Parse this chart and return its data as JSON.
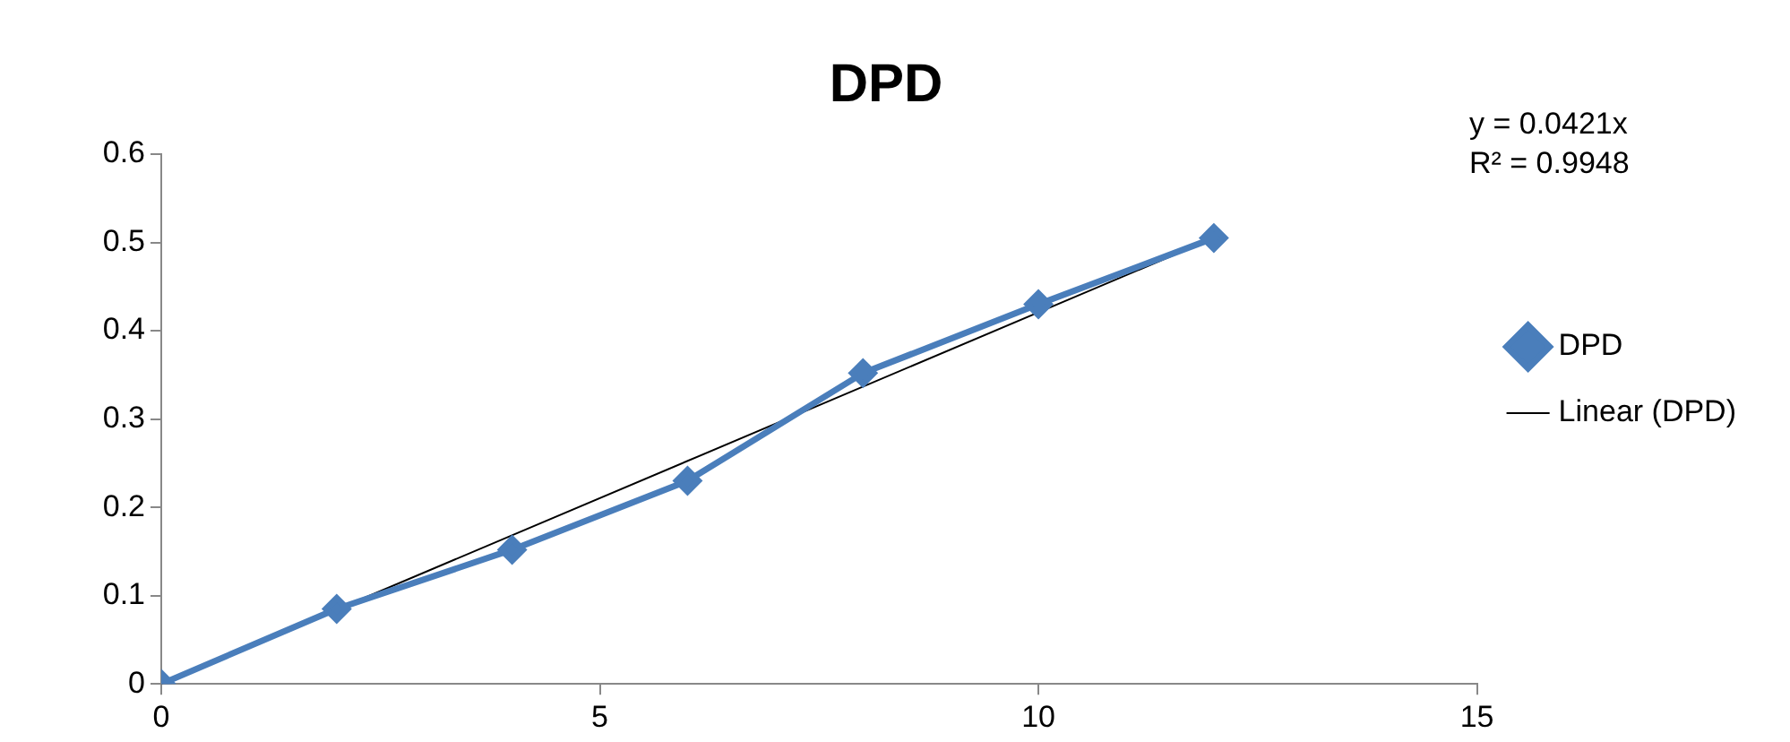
{
  "chart_data": {
    "type": "line",
    "title": "DPD",
    "series": [
      {
        "name": "DPD",
        "color": "#4a7ebb",
        "x": [
          0,
          2,
          4,
          6,
          8,
          10,
          12
        ],
        "values": [
          0,
          0.085,
          0.152,
          0.23,
          0.352,
          0.43,
          0.505
        ],
        "marker": "diamond"
      },
      {
        "name": "Linear (DPD)",
        "color": "#000000",
        "x": [
          0,
          12
        ],
        "values": [
          0,
          0.505
        ],
        "marker": "none"
      }
    ],
    "xlim": [
      0,
      15
    ],
    "xticks": [
      0,
      5,
      10,
      15
    ],
    "ylim": [
      0,
      0.6
    ],
    "yticks": [
      0,
      0.1,
      0.2,
      0.3,
      0.4,
      0.5,
      0.6
    ],
    "grid": false,
    "legend": "right",
    "line_style": "solid",
    "annotations": [
      "y = 0.0421x",
      "R² = 0.9948"
    ]
  }
}
